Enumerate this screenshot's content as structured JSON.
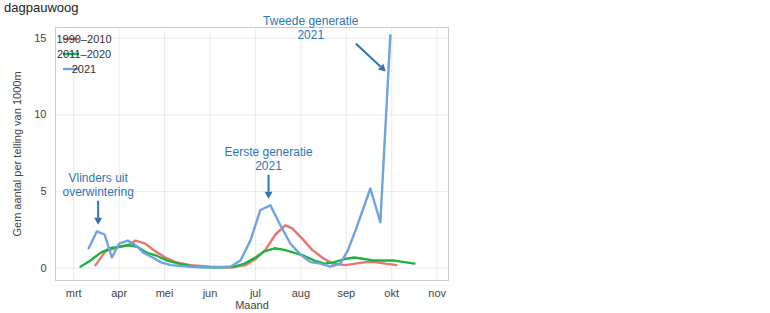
{
  "chart_data": {
    "type": "line",
    "title": "dagpauwoog",
    "xlabel": "Maand",
    "ylabel": "Gem aantal per telling van 1000m",
    "xlim": [
      2.6,
      11.25
    ],
    "xticks": [
      {
        "value": 3,
        "label": "mrt"
      },
      {
        "value": 4,
        "label": "apr"
      },
      {
        "value": 5,
        "label": "mei"
      },
      {
        "value": 6,
        "label": "jun"
      },
      {
        "value": 7,
        "label": "jul"
      },
      {
        "value": 8,
        "label": "aug"
      },
      {
        "value": 9,
        "label": "sep"
      },
      {
        "value": 10,
        "label": "okt"
      },
      {
        "value": 11,
        "label": "nov"
      }
    ],
    "ylim": [
      -0.8,
      15.7
    ],
    "yticks": [
      0,
      5,
      10,
      15
    ],
    "grid": true,
    "legend": "top-left",
    "series": [
      {
        "name": "1990–2010",
        "color": "#E8766D",
        "x": [
          3.48,
          3.7,
          4.0,
          4.2,
          4.36,
          4.58,
          4.8,
          5.02,
          5.24,
          5.57,
          6.01,
          6.45,
          6.78,
          7.0,
          7.22,
          7.44,
          7.66,
          7.81,
          8.04,
          8.25,
          8.47,
          8.69,
          8.98,
          9.2,
          9.42,
          9.64,
          9.86,
          10.1
        ],
        "values": [
          0.2,
          1.1,
          1.4,
          1.5,
          1.8,
          1.6,
          1.1,
          0.7,
          0.4,
          0.2,
          0.1,
          0.05,
          0.2,
          0.6,
          1.2,
          2.2,
          2.8,
          2.6,
          1.9,
          1.2,
          0.7,
          0.3,
          0.2,
          0.3,
          0.4,
          0.4,
          0.3,
          0.2
        ]
      },
      {
        "name": "2011–2020",
        "color": "#1DB33F",
        "x": [
          3.15,
          3.37,
          3.59,
          3.8,
          4.0,
          4.2,
          4.4,
          4.62,
          4.84,
          5.06,
          5.32,
          5.65,
          6.1,
          6.54,
          6.76,
          7.0,
          7.2,
          7.42,
          7.64,
          7.86,
          8.08,
          8.3,
          8.52,
          8.74,
          8.96,
          9.18,
          9.4,
          9.62,
          9.84,
          10.06,
          10.28,
          10.5
        ],
        "values": [
          0.1,
          0.5,
          1.0,
          1.3,
          1.4,
          1.5,
          1.4,
          1.0,
          0.8,
          0.5,
          0.3,
          0.1,
          0.05,
          0.1,
          0.3,
          0.7,
          1.1,
          1.3,
          1.2,
          1.0,
          0.8,
          0.5,
          0.3,
          0.4,
          0.6,
          0.7,
          0.6,
          0.5,
          0.5,
          0.5,
          0.4,
          0.3
        ]
      },
      {
        "name": "2021",
        "color": "#6FA3E0",
        "x": [
          3.33,
          3.51,
          3.68,
          3.84,
          4.0,
          4.19,
          4.36,
          4.54,
          4.74,
          4.91,
          5.13,
          5.57,
          6.01,
          6.45,
          6.67,
          6.89,
          7.11,
          7.33,
          7.55,
          7.77,
          7.99,
          8.21,
          8.43,
          8.65,
          8.87,
          9.04,
          9.22,
          9.53,
          9.75,
          9.97
        ],
        "values": [
          1.3,
          2.4,
          2.2,
          0.7,
          1.6,
          1.8,
          1.5,
          1.0,
          0.7,
          0.4,
          0.2,
          0.1,
          0.05,
          0.1,
          0.5,
          1.8,
          3.8,
          4.1,
          2.8,
          1.6,
          0.9,
          0.4,
          0.3,
          0.1,
          0.3,
          1.2,
          2.6,
          5.2,
          3.0,
          15.2
        ]
      }
    ],
    "annotations": [
      {
        "text": "Vlinders uit\noverwintering",
        "x": 3.55,
        "y": 2.8
      },
      {
        "text": "Eerste generatie\n2021",
        "x": 7.3,
        "y": 4.5
      },
      {
        "text": "Tweede generatie\n2021",
        "x": 9.88,
        "y": 12.8
      }
    ]
  }
}
